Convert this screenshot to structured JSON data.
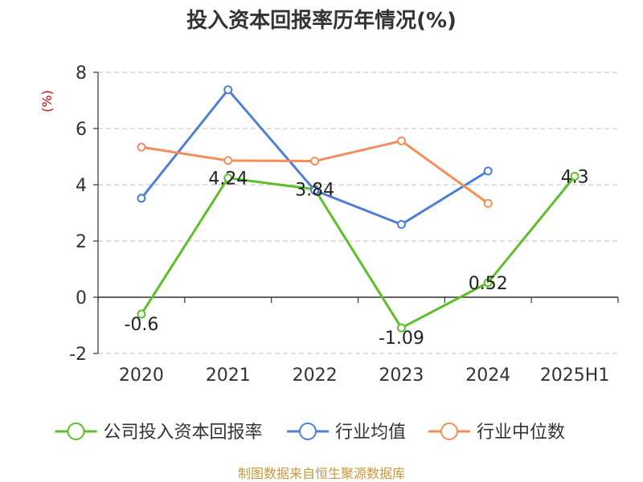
{
  "chart_data": {
    "type": "line",
    "title": "投入资本回报率历年情况(%)",
    "ylabel": "(%)",
    "xlabel": "",
    "categories": [
      "2020",
      "2021",
      "2022",
      "2023",
      "2024",
      "2025H1"
    ],
    "ylim": [
      -2,
      8
    ],
    "yticks": [
      -2,
      0,
      2,
      4,
      6,
      8
    ],
    "grid": true,
    "legend_position": "bottom",
    "series": [
      {
        "name": "公司投入资本回报率",
        "color": "#5cbf2a",
        "values": [
          -0.6,
          4.24,
          3.84,
          -1.09,
          0.52,
          4.3
        ],
        "labels": [
          "-0.6",
          "4.24",
          "3.84",
          "-1.09",
          "0.52",
          "4.3"
        ]
      },
      {
        "name": "行业均值",
        "color": "#4e7fd8",
        "values": [
          3.52,
          7.38,
          3.8,
          2.59,
          4.49,
          null
        ]
      },
      {
        "name": "行业中位数",
        "color": "#f58d5a",
        "values": [
          5.34,
          4.86,
          4.84,
          5.56,
          3.34,
          null
        ]
      }
    ]
  },
  "source_text": "制图数据来自恒生聚源数据库",
  "colors": {
    "ylabel": "#cc0000",
    "source": "#c8963c",
    "grid": "#cccccc",
    "axis": "#333333"
  }
}
